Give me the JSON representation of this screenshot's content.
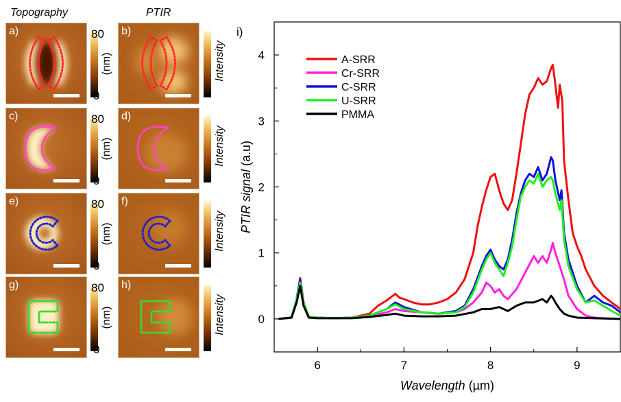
{
  "headers": {
    "topography": "Topography",
    "ptir": "PTIR"
  },
  "panels": [
    {
      "id": "a",
      "label": "a)",
      "kind": "topo",
      "shape": "A-SRR",
      "outline_color": "#ff2a2a"
    },
    {
      "id": "b",
      "label": "b)",
      "kind": "ptir",
      "shape": "A-SRR",
      "outline_color": "#ff2a2a"
    },
    {
      "id": "c",
      "label": "c)",
      "kind": "topo",
      "shape": "Cr-SRR",
      "outline_color": "#ff44cc"
    },
    {
      "id": "d",
      "label": "d)",
      "kind": "ptir",
      "shape": "Cr-SRR",
      "outline_color": "#ff44cc"
    },
    {
      "id": "e",
      "label": "e)",
      "kind": "topo",
      "shape": "C-SRR",
      "outline_color": "#2222cc"
    },
    {
      "id": "f",
      "label": "f)",
      "kind": "ptir",
      "shape": "C-SRR",
      "outline_color": "#2222cc"
    },
    {
      "id": "g",
      "label": "g)",
      "kind": "topo",
      "shape": "U-SRR",
      "outline_color": "#33dd33"
    },
    {
      "id": "h",
      "label": "h)",
      "kind": "ptir",
      "shape": "U-SRR",
      "outline_color": "#33dd33"
    }
  ],
  "colorbar_topo": {
    "max": "80",
    "min": "0",
    "unit": "(nm)"
  },
  "colorbar_ptir": {
    "label": "Intensity"
  },
  "chart_label": "i)",
  "chart_data": {
    "type": "line",
    "xlabel_italic": "Wavelength",
    "xlabel_unit": " (µm)",
    "ylabel_italic": "PTIR signal",
    "ylabel_unit": " (a.u)",
    "xlim": [
      5.5,
      9.5
    ],
    "ylim": [
      -0.5,
      4.5
    ],
    "xticks": [
      6,
      7,
      8,
      9
    ],
    "yticks": [
      0,
      1,
      2,
      3,
      4
    ],
    "legend_position": "top-left",
    "series": [
      {
        "name": "A-SRR",
        "color": "#ee1111",
        "x": [
          5.55,
          5.7,
          5.76,
          5.8,
          5.84,
          5.9,
          6.0,
          6.2,
          6.4,
          6.6,
          6.7,
          6.8,
          6.9,
          6.95,
          7.0,
          7.1,
          7.2,
          7.3,
          7.4,
          7.5,
          7.6,
          7.7,
          7.8,
          7.85,
          7.9,
          7.95,
          8.0,
          8.05,
          8.1,
          8.15,
          8.2,
          8.25,
          8.3,
          8.35,
          8.4,
          8.45,
          8.5,
          8.55,
          8.6,
          8.65,
          8.7,
          8.72,
          8.75,
          8.78,
          8.8,
          8.83,
          8.85,
          8.9,
          8.95,
          9.0,
          9.05,
          9.1,
          9.2,
          9.3,
          9.4,
          9.5
        ],
        "y": [
          0.0,
          0.02,
          0.3,
          0.62,
          0.25,
          0.03,
          0.02,
          0.01,
          0.02,
          0.08,
          0.2,
          0.28,
          0.38,
          0.32,
          0.3,
          0.25,
          0.22,
          0.22,
          0.25,
          0.3,
          0.4,
          0.6,
          1.0,
          1.4,
          1.7,
          1.95,
          2.15,
          2.2,
          1.95,
          1.75,
          1.65,
          1.8,
          2.2,
          2.65,
          3.1,
          3.4,
          3.5,
          3.65,
          3.55,
          3.6,
          3.8,
          3.85,
          3.55,
          3.2,
          3.55,
          3.3,
          2.4,
          1.8,
          1.3,
          1.1,
          0.95,
          0.75,
          0.5,
          0.35,
          0.25,
          0.15
        ]
      },
      {
        "name": "Cr-SRR",
        "color": "#ff22dd",
        "x": [
          5.55,
          5.7,
          5.76,
          5.8,
          5.84,
          5.9,
          6.0,
          6.2,
          6.4,
          6.6,
          6.8,
          6.9,
          7.0,
          7.2,
          7.4,
          7.6,
          7.7,
          7.8,
          7.9,
          7.95,
          8.0,
          8.05,
          8.1,
          8.15,
          8.2,
          8.3,
          8.4,
          8.5,
          8.55,
          8.6,
          8.65,
          8.7,
          8.72,
          8.75,
          8.8,
          8.85,
          8.9,
          9.0,
          9.1,
          9.2,
          9.3,
          9.5
        ],
        "y": [
          0.0,
          0.02,
          0.3,
          0.6,
          0.25,
          0.03,
          0.02,
          0.01,
          0.02,
          0.04,
          0.1,
          0.15,
          0.12,
          0.1,
          0.08,
          0.1,
          0.15,
          0.25,
          0.4,
          0.55,
          0.5,
          0.4,
          0.45,
          0.35,
          0.3,
          0.45,
          0.7,
          0.95,
          0.85,
          0.95,
          0.85,
          1.05,
          1.15,
          1.0,
          0.8,
          0.6,
          0.35,
          0.15,
          0.05,
          0.02,
          0.01,
          0.0
        ]
      },
      {
        "name": "C-SRR",
        "color": "#1111dd",
        "x": [
          5.55,
          5.7,
          5.76,
          5.8,
          5.84,
          5.9,
          6.0,
          6.2,
          6.4,
          6.6,
          6.8,
          6.9,
          7.0,
          7.2,
          7.4,
          7.6,
          7.7,
          7.8,
          7.9,
          7.95,
          8.0,
          8.05,
          8.1,
          8.15,
          8.2,
          8.25,
          8.3,
          8.35,
          8.4,
          8.45,
          8.5,
          8.55,
          8.6,
          8.65,
          8.7,
          8.72,
          8.75,
          8.8,
          8.82,
          8.85,
          8.9,
          9.0,
          9.1,
          9.2,
          9.3,
          9.4,
          9.5
        ],
        "y": [
          0.0,
          0.02,
          0.3,
          0.6,
          0.25,
          0.03,
          0.02,
          0.01,
          0.02,
          0.05,
          0.15,
          0.25,
          0.18,
          0.1,
          0.08,
          0.12,
          0.2,
          0.45,
          0.8,
          0.95,
          1.05,
          0.9,
          0.8,
          0.75,
          0.9,
          1.2,
          1.6,
          1.9,
          2.1,
          2.2,
          2.15,
          2.3,
          2.1,
          2.2,
          2.45,
          2.4,
          2.1,
          1.8,
          1.95,
          1.3,
          0.9,
          0.5,
          0.25,
          0.35,
          0.25,
          0.2,
          0.1
        ]
      },
      {
        "name": "U-SRR",
        "color": "#22ee22",
        "x": [
          5.55,
          5.7,
          5.76,
          5.8,
          5.84,
          5.9,
          6.0,
          6.2,
          6.4,
          6.6,
          6.8,
          6.9,
          7.0,
          7.2,
          7.4,
          7.6,
          7.7,
          7.8,
          7.9,
          7.95,
          8.0,
          8.05,
          8.1,
          8.15,
          8.2,
          8.25,
          8.3,
          8.35,
          8.4,
          8.45,
          8.5,
          8.55,
          8.6,
          8.65,
          8.7,
          8.72,
          8.75,
          8.8,
          8.82,
          8.85,
          8.9,
          9.0,
          9.1,
          9.2,
          9.3,
          9.4,
          9.5
        ],
        "y": [
          0.0,
          0.02,
          0.3,
          0.55,
          0.25,
          0.03,
          0.02,
          0.01,
          0.02,
          0.05,
          0.15,
          0.22,
          0.15,
          0.1,
          0.08,
          0.1,
          0.18,
          0.4,
          0.75,
          0.9,
          1.0,
          0.85,
          0.75,
          0.65,
          0.85,
          1.1,
          1.5,
          1.85,
          2.0,
          2.1,
          2.05,
          2.2,
          2.0,
          2.1,
          2.15,
          2.1,
          1.9,
          1.65,
          1.8,
          1.2,
          0.8,
          0.45,
          0.25,
          0.28,
          0.2,
          0.12,
          0.05
        ]
      },
      {
        "name": "PMMA",
        "color": "#000000",
        "x": [
          5.55,
          5.7,
          5.76,
          5.8,
          5.84,
          5.9,
          6.0,
          6.2,
          6.4,
          6.6,
          6.8,
          6.9,
          7.0,
          7.2,
          7.4,
          7.6,
          7.8,
          7.9,
          8.0,
          8.1,
          8.2,
          8.3,
          8.4,
          8.5,
          8.6,
          8.65,
          8.7,
          8.72,
          8.75,
          8.8,
          8.85,
          8.9,
          9.0,
          9.2,
          9.5
        ],
        "y": [
          0.0,
          0.02,
          0.25,
          0.5,
          0.2,
          0.02,
          0.01,
          0.01,
          0.01,
          0.03,
          0.06,
          0.08,
          0.05,
          0.04,
          0.04,
          0.05,
          0.1,
          0.15,
          0.15,
          0.18,
          0.12,
          0.2,
          0.25,
          0.25,
          0.3,
          0.25,
          0.35,
          0.32,
          0.25,
          0.15,
          0.08,
          0.05,
          0.02,
          0.01,
          0.0
        ]
      }
    ]
  }
}
